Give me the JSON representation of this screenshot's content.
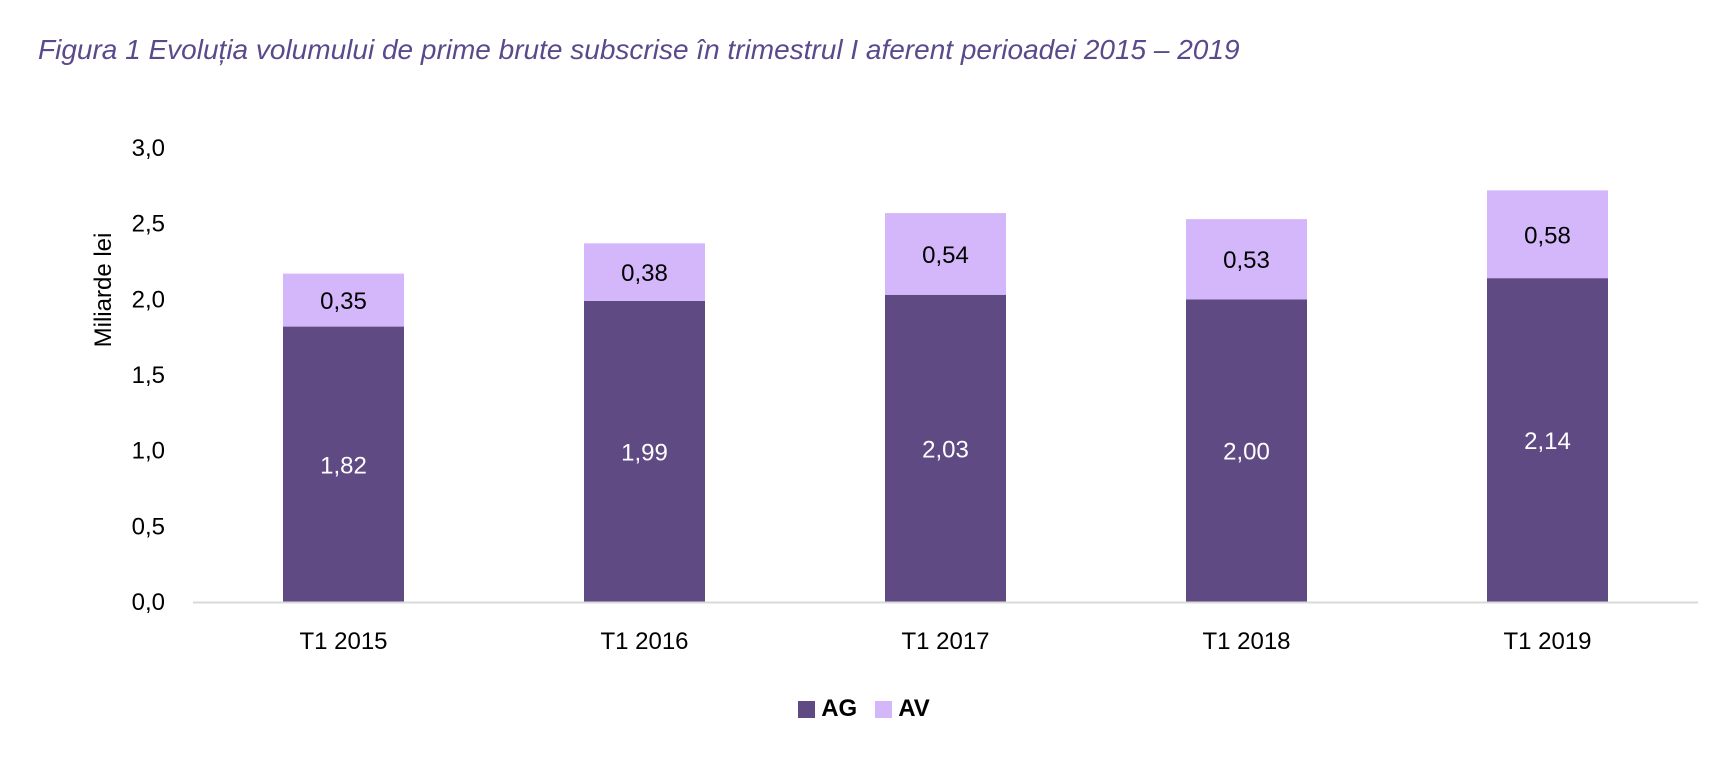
{
  "chart_data": {
    "type": "bar",
    "stacked": true,
    "title": "Figura 1 Evoluția volumului de prime brute subscrise în trimestrul I aferent perioadei 2015 – 2019",
    "xlabel": "",
    "ylabel": "Miliarde lei",
    "ylim": [
      0,
      3.0
    ],
    "yticks": [
      "0,0",
      "0,5",
      "1,0",
      "1,5",
      "2,0",
      "2,5",
      "3,0"
    ],
    "categories": [
      "T1 2015",
      "T1 2016",
      "T1 2017",
      "T1 2018",
      "T1 2019"
    ],
    "series": [
      {
        "name": "AG",
        "color": "#604a84",
        "label_color": "#ffffff",
        "values": [
          1.82,
          1.99,
          2.03,
          2.0,
          2.14
        ],
        "labels": [
          "1,82",
          "1,99",
          "2,03",
          "2,00",
          "2,14"
        ]
      },
      {
        "name": "AV",
        "color": "#d4b7fa",
        "label_color": "#000000",
        "values": [
          0.35,
          0.38,
          0.54,
          0.53,
          0.58
        ],
        "labels": [
          "0,35",
          "0,38",
          "0,54",
          "0,53",
          "0,58"
        ]
      }
    ],
    "grid": false,
    "legend": "bottom-center"
  }
}
